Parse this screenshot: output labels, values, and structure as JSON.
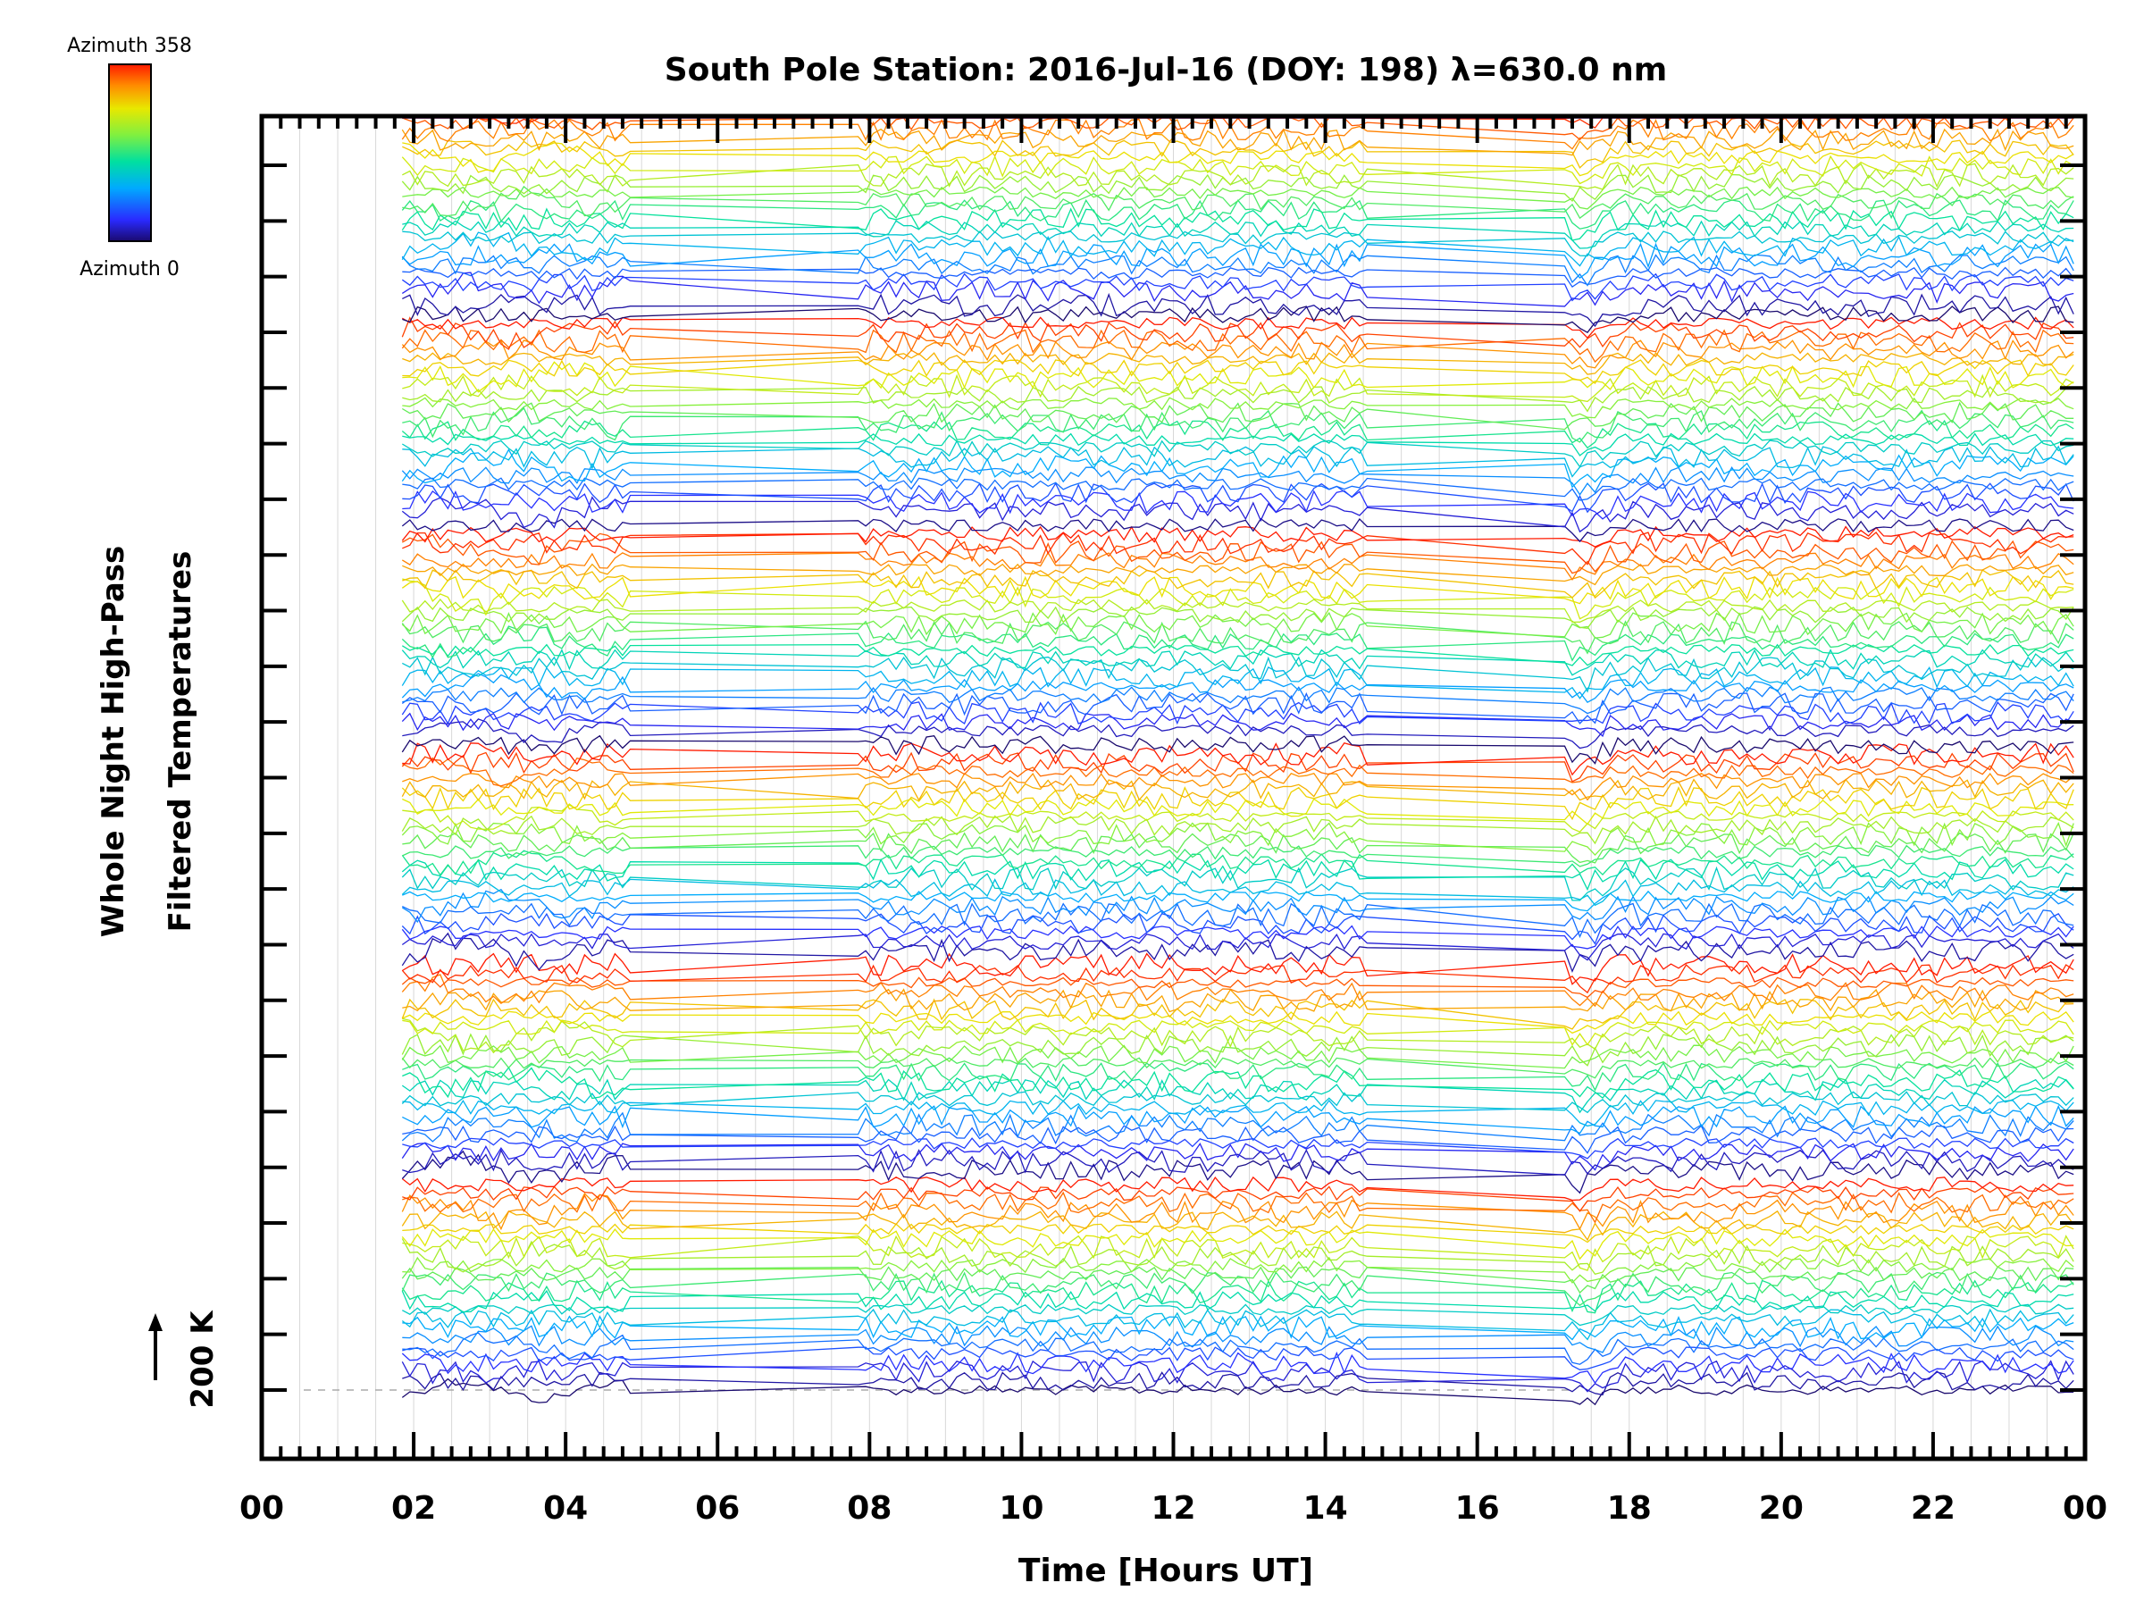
{
  "chart_data": {
    "type": "line",
    "title": "South Pole Station: 2016-Jul-16 (DOY: 198) λ=630.0 nm",
    "xlabel": "Time [Hours UT]",
    "ylabel_line1": "Whole Night High-Pass",
    "ylabel_line2": "Filtered Temperatures",
    "scale_label": "200 K",
    "xlim": [
      0,
      24
    ],
    "x_tick_labels": [
      "00",
      "02",
      "04",
      "06",
      "08",
      "10",
      "12",
      "14",
      "16",
      "18",
      "20",
      "22",
      "00"
    ],
    "colorbar": {
      "top_label": "Azimuth 358",
      "bottom_label": "Azimuth 0",
      "min": 0,
      "max": 358
    },
    "grid": "vertical",
    "series_count": 144,
    "stack_groups": 6,
    "azimuth_steps": 24,
    "gap_times": [
      [
        4.8,
        7.8
      ],
      [
        14.5,
        17.1
      ]
    ],
    "series_description": "Stacked high-pass filtered temperature time series, one per azimuth, colored by azimuth"
  }
}
